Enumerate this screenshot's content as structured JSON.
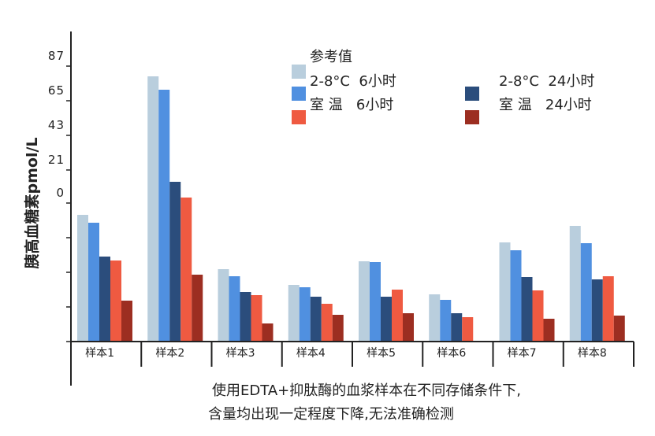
{
  "chart_data": {
    "type": "bar",
    "ylabel": "胰高血糖素pmol/L",
    "caption_lines": [
      "使用EDTA+抑肽酶的血浆样本在不同存储条件下,",
      "含量均出现一定程度下降,无法准确检测"
    ],
    "yticks": [
      {
        "value": 87,
        "label": "87"
      },
      {
        "value": 65,
        "label": "65"
      },
      {
        "value": 43,
        "label": "43"
      },
      {
        "value": 21,
        "label": "21"
      },
      {
        "value": 0,
        "label": "0"
      },
      {
        "value": -22,
        "label": ""
      },
      {
        "value": -44,
        "label": ""
      },
      {
        "value": -66,
        "label": ""
      },
      {
        "value": -88,
        "label": ""
      }
    ],
    "ylim": [
      -88,
      109
    ],
    "grid": false,
    "legend_placement": "top-right",
    "categories": [
      "样本1",
      "样本2",
      "样本3",
      "样本4",
      "样本5",
      "样本6",
      "样本7",
      "样本8"
    ],
    "series": [
      {
        "name": "参考值",
        "color": "#b9cedd",
        "values": [
          -7.5,
          80.5,
          -42,
          -52,
          -37,
          -58,
          -25,
          -14.5
        ]
      },
      {
        "name": "2-8°C  6小时",
        "color": "#5090e0",
        "values": [
          -12.5,
          72,
          -46.5,
          -53.5,
          -37.5,
          -61.5,
          -30,
          -25.5
        ]
      },
      {
        "name": "2-8°C  24小时",
        "color": "#2b4d7c",
        "values": [
          -34,
          13.5,
          -56.5,
          -59.5,
          -59.5,
          -70,
          -47,
          -48.5
        ]
      },
      {
        "name": "室 温   6小时",
        "color": "#ef5a41",
        "values": [
          -36.5,
          3.5,
          -58.5,
          -64,
          -55,
          -72.5,
          -55.5,
          -46.5
        ]
      },
      {
        "name": "室 温   24小时",
        "color": "#9c2e21",
        "values": [
          -62,
          -45.5,
          -76.5,
          -71,
          -70,
          null,
          -73.5,
          -71.5
        ]
      }
    ]
  }
}
